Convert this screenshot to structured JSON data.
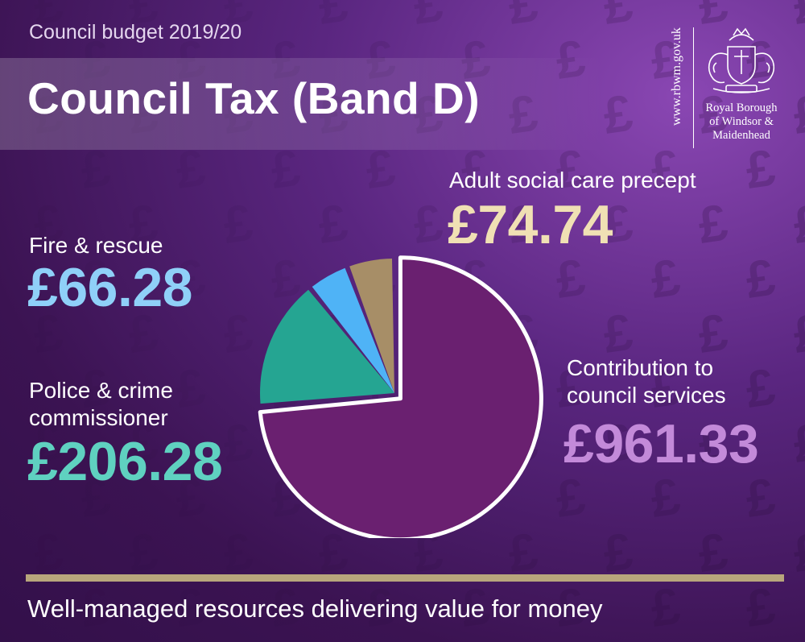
{
  "header": {
    "subtitle": "Council budget 2019/20",
    "title": "Council Tax (Band D)"
  },
  "logo": {
    "url": "www.rbwm.gov.uk",
    "org_lines": [
      "Royal Borough",
      "of Windsor &",
      "Maidenhead"
    ]
  },
  "labels": {
    "adult_social_care": {
      "label": "Adult social care precept",
      "amount": "£74.74"
    },
    "fire_rescue": {
      "label": "Fire & rescue",
      "amount": "£66.28"
    },
    "police": {
      "label_line1": "Police & crime",
      "label_line2": "commissioner",
      "amount": "£206.28"
    },
    "council": {
      "label_line1": "Contribution to",
      "label_line2": "council services",
      "amount": "£961.33"
    }
  },
  "footer": {
    "text": "Well-managed resources delivering value for money"
  },
  "colors": {
    "council": "#6a2070",
    "police": "#25a592",
    "fire": "#4fb3f6",
    "adult_social_care": "#a78e67",
    "council_text": "#c38ad9",
    "police_text": "#5fd1c0",
    "fire_text": "#8fd0f8",
    "adult_text": "#f0e0b4",
    "accent_bar": "#b8a67c"
  },
  "chart_data": {
    "type": "pie",
    "title": "Council Tax (Band D)",
    "unit": "£",
    "slices": [
      {
        "label": "Contribution to council services",
        "value": 961.33,
        "color": "#6a2070",
        "exploded": true
      },
      {
        "label": "Police & crime commissioner",
        "value": 206.28,
        "color": "#25a592"
      },
      {
        "label": "Fire & rescue",
        "value": 66.28,
        "color": "#4fb3f6"
      },
      {
        "label": "Adult social care precept",
        "value": 74.74,
        "color": "#a78e67"
      }
    ]
  }
}
